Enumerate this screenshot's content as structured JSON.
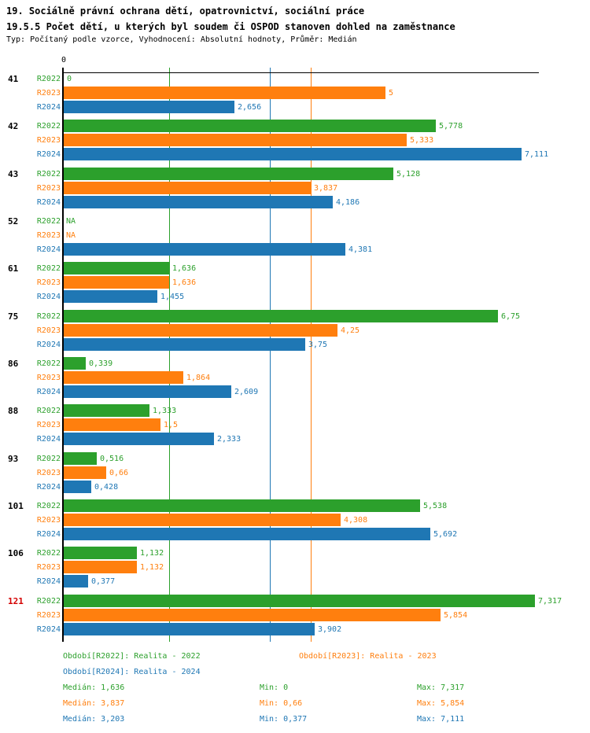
{
  "header": {
    "title": "19. Sociálně právní ochrana dětí, opatrovnictví, sociální práce",
    "subtitle": "19.5.5 Počet dětí, u kterých byl soudem či OSPOD stanoven dohled na zaměstnance",
    "meta": "Typ: Počítaný podle vzorce, Vyhodnocení: Absolutní hodnoty, Průměr: Medián"
  },
  "colors": {
    "green": "#2ca02c",
    "orange": "#ff7f0e",
    "blue": "#1f77b4",
    "highlight_id": "#d40000",
    "axis": "#000000"
  },
  "chart_data": {
    "type": "bar",
    "orientation": "horizontal",
    "title": "19.5.5 Počet dětí, u kterých byl soudem či OSPOD stanoven dohled na zaměstnance",
    "axis_origin_label": "0",
    "xlim": [
      0,
      7.38
    ],
    "grid": "one vertical median line per series, crossing top axis",
    "legend_position": "bottom",
    "categories": [
      "41",
      "42",
      "43",
      "52",
      "61",
      "75",
      "86",
      "88",
      "93",
      "101",
      "106",
      "121"
    ],
    "highlighted_category": "121",
    "na_text": "NA",
    "series": [
      {
        "name": "R2022",
        "legend": "Období[R2022]: Realita - 2022",
        "color": "#2ca02c",
        "median": 1.636,
        "values": [
          0,
          5.778,
          5.128,
          null,
          1.636,
          6.75,
          0.339,
          1.333,
          0.516,
          5.538,
          1.132,
          7.317
        ],
        "display": [
          "0",
          "5,778",
          "5,128",
          "NA",
          "1,636",
          "6,75",
          "0,339",
          "1,333",
          "0,516",
          "5,538",
          "1,132",
          "7,317"
        ],
        "stats": {
          "median": "Medián: 1,636",
          "min": "Min: 0",
          "max": "Max: 7,317"
        }
      },
      {
        "name": "R2023",
        "legend": "Období[R2023]: Realita - 2023",
        "color": "#ff7f0e",
        "median": 3.837,
        "values": [
          5,
          5.333,
          3.837,
          null,
          1.636,
          4.25,
          1.864,
          1.5,
          0.66,
          4.308,
          1.132,
          5.854
        ],
        "display": [
          "5",
          "5,333",
          "3,837",
          "NA",
          "1,636",
          "4,25",
          "1,864",
          "1,5",
          "0,66",
          "4,308",
          "1,132",
          "5,854"
        ],
        "stats": {
          "median": "Medián: 3,837",
          "min": "Min: 0,66",
          "max": "Max: 5,854"
        }
      },
      {
        "name": "R2024",
        "legend": "Období[R2024]: Realita - 2024",
        "color": "#1f77b4",
        "median": 3.203,
        "values": [
          2.656,
          7.111,
          4.186,
          4.381,
          1.455,
          3.75,
          2.609,
          2.333,
          0.428,
          5.692,
          0.377,
          3.902
        ],
        "display": [
          "2,656",
          "7,111",
          "4,186",
          "4,381",
          "1,455",
          "3,75",
          "2,609",
          "2,333",
          "0,428",
          "5,692",
          "0,377",
          "3,902"
        ],
        "stats": {
          "median": "Medián: 3,203",
          "min": "Min: 0,377",
          "max": "Max: 7,111"
        }
      }
    ]
  }
}
